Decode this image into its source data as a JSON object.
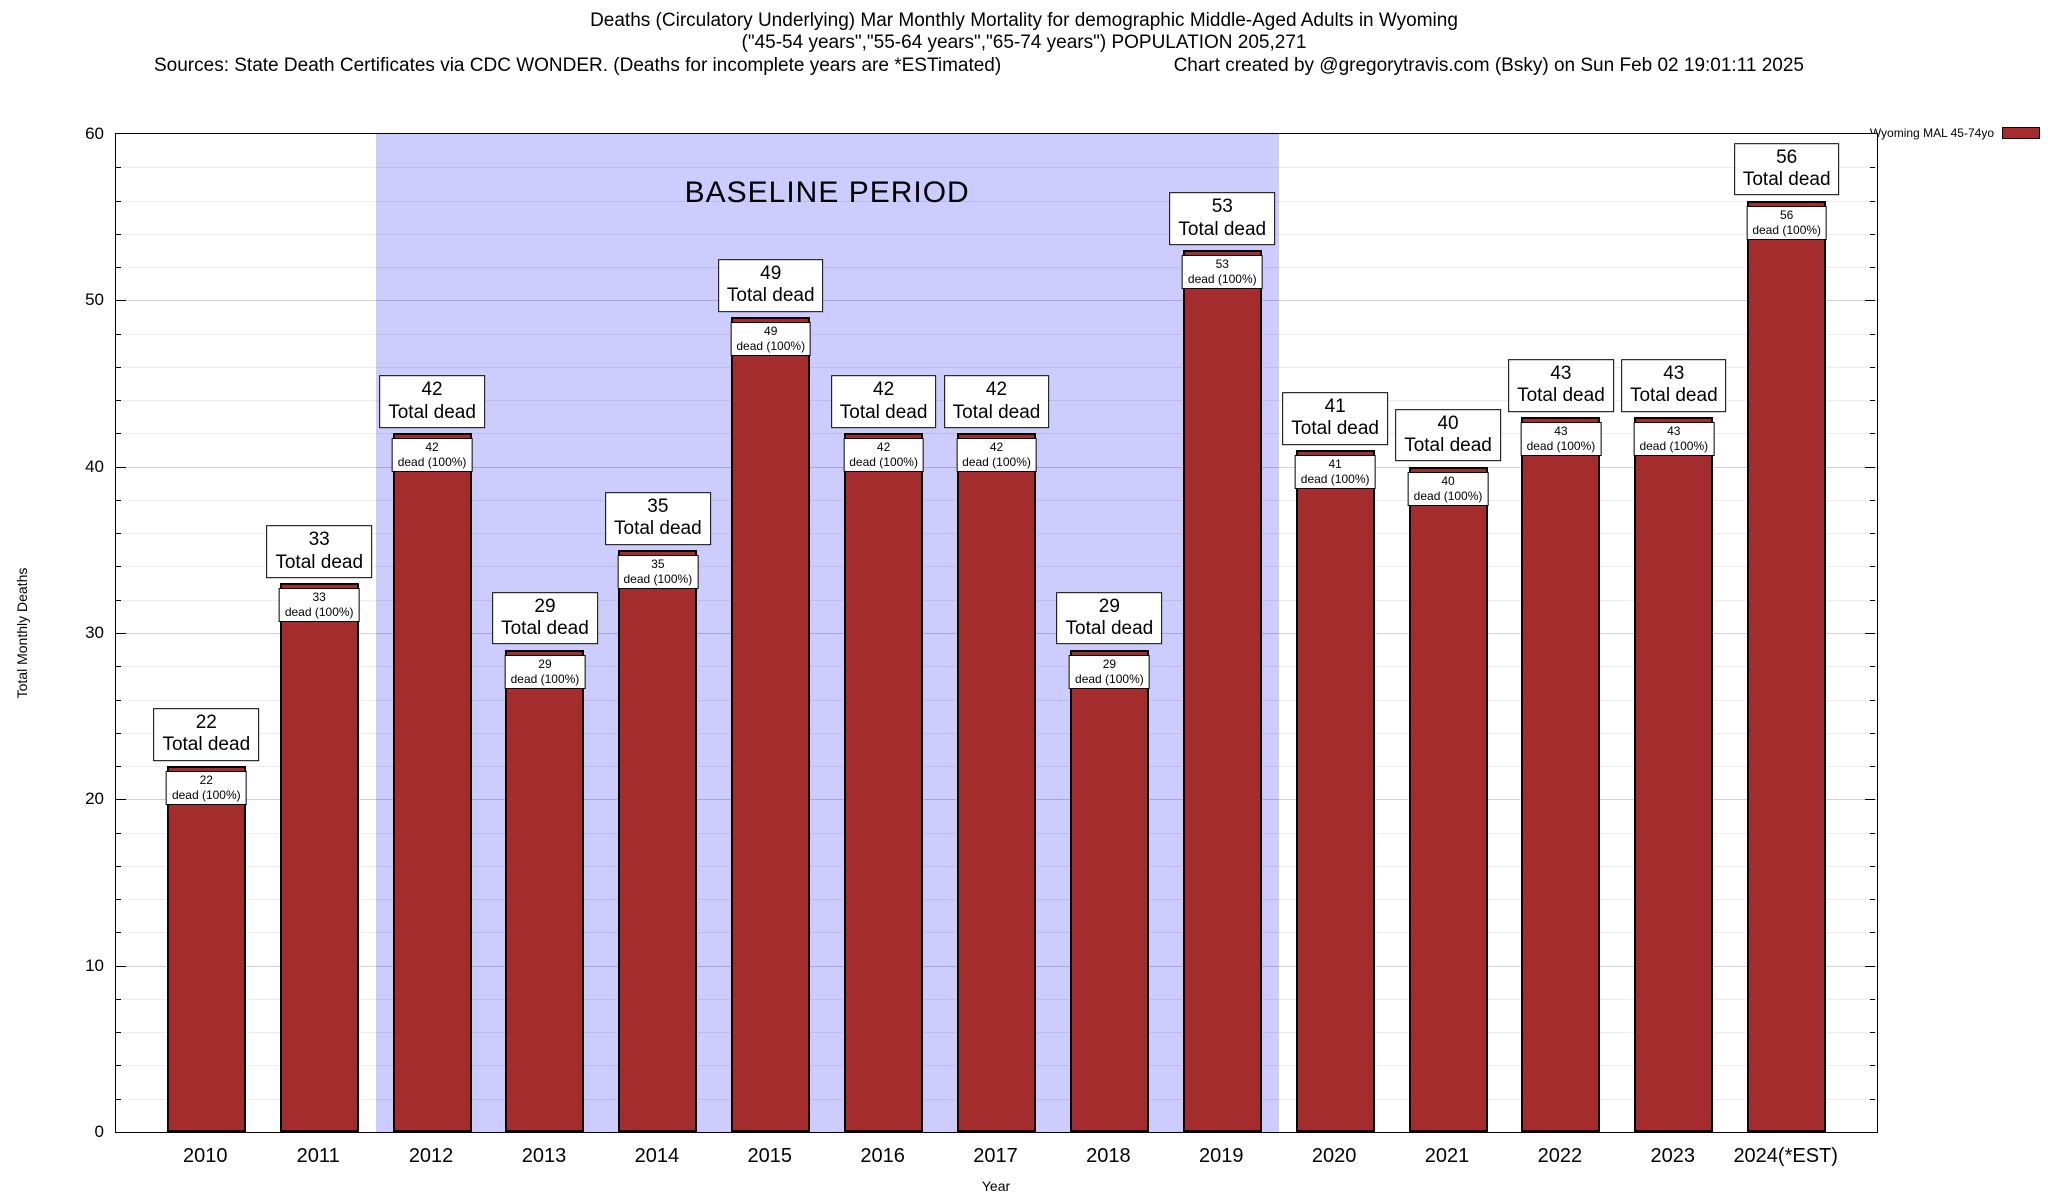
{
  "header": {
    "title_line1": "Deaths (Circulatory Underlying) Mar Monthly Mortality for demographic Middle-Aged Adults in Wyoming",
    "title_line2": "(\"45-54 years\",\"55-64 years\",\"65-74 years\") POPULATION 205,271",
    "sources": "Sources: State Death Certificates via CDC WONDER. (Deaths for incomplete years are *ESTimated)",
    "credit": "Chart created by @gregorytravis.com (Bsky) on Sun Feb 02 19:01:11 2025"
  },
  "legend": {
    "label": "Wyoming MAL 45-74yo",
    "swatch_color": "#a52c2c"
  },
  "chart_data": {
    "type": "bar",
    "title": "Deaths (Circulatory Underlying) Mar Monthly Mortality for demographic Middle-Aged Adults in Wyoming",
    "subtitle": "(\"45-54 years\",\"55-64 years\",\"65-74 years\") POPULATION 205,271",
    "categories": [
      "2010",
      "2011",
      "2012",
      "2013",
      "2014",
      "2015",
      "2016",
      "2017",
      "2018",
      "2019",
      "2020",
      "2021",
      "2022",
      "2023",
      "2024(*EST)"
    ],
    "values": [
      22,
      33,
      42,
      29,
      35,
      49,
      42,
      42,
      29,
      53,
      41,
      40,
      43,
      43,
      56
    ],
    "series_name": "Wyoming MAL 45-74yo",
    "bar_label_top_suffix": "Total dead",
    "bar_label_inner_suffix": "dead (100%)",
    "xlabel": "Year",
    "ylabel": "Total Monthly Deaths",
    "ylim": [
      0,
      60
    ],
    "yticks": [
      0,
      10,
      20,
      30,
      40,
      50,
      60
    ],
    "grid": true,
    "bar_color": "#a52c2c",
    "baseline_band": {
      "label": "BASELINE PERIOD",
      "start_category": "2012",
      "end_category": "2019",
      "color": "#ccccff"
    },
    "legend_position": "top-right"
  }
}
